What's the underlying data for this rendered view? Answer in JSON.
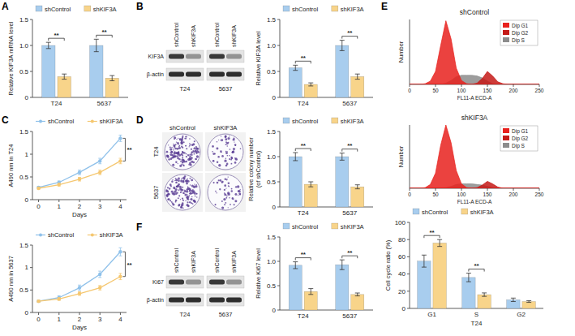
{
  "panels": [
    "A",
    "B",
    "C",
    "D",
    "E",
    "F"
  ],
  "blots": [
    {
      "lanes": [
        "shControl",
        "shKIF3A"
      ],
      "groups": [
        "T24",
        "5637"
      ],
      "rows": [
        "KIF3A",
        "β-actin"
      ]
    },
    {
      "lanes": [
        "shControl",
        "shKIF3A"
      ],
      "groups": [
        "T24",
        "5637"
      ],
      "rows": [
        "Ki67",
        "β-actin"
      ]
    }
  ],
  "colony": {
    "columns": [
      "shControl",
      "shKIF3A"
    ],
    "rows": [
      "T24",
      "5637"
    ]
  },
  "chart_data": [
    {
      "type": "bar",
      "ylabel": "Relative KIF3A mRNA level",
      "categories": [
        "T24",
        "5637"
      ],
      "series": [
        {
          "name": "shControl",
          "color": "#a8cdee",
          "values": [
            1.0,
            1.0
          ],
          "errors": [
            0.06,
            0.12
          ]
        },
        {
          "name": "shKIF3A",
          "color": "#f8d48a",
          "values": [
            0.4,
            0.37
          ],
          "errors": [
            0.05,
            0.05
          ]
        }
      ],
      "ylim": [
        0,
        1.5
      ],
      "yticks": [
        0,
        0.5,
        {
          "value": 1,
          "label": "1.0"
        },
        1.5
      ],
      "legend": "top",
      "annotations": [
        "**",
        "**"
      ]
    },
    {
      "type": "bar",
      "ylabel": "Relative KIF3A level",
      "categories": [
        "T24",
        "5637"
      ],
      "series": [
        {
          "name": "shControl",
          "color": "#a8cdee",
          "values": [
            0.57,
            1.0
          ],
          "errors": [
            0.05,
            0.1
          ]
        },
        {
          "name": "shKIF3A",
          "color": "#f8d48a",
          "values": [
            0.25,
            0.4
          ],
          "errors": [
            0.03,
            0.05
          ]
        }
      ],
      "ylim": [
        0,
        1.5
      ],
      "yticks": [
        0,
        0.5,
        {
          "value": 1,
          "label": "1.0"
        },
        1.5
      ],
      "legend": "top",
      "annotations": [
        "**",
        "**"
      ]
    },
    {
      "type": "line",
      "ylabel": "A490 nm in T24",
      "xlabel": "Days",
      "x": [
        0,
        1,
        2,
        3,
        4
      ],
      "xlim": [
        -0.3,
        4.3
      ],
      "xticks": [
        0,
        1,
        2,
        3,
        4
      ],
      "ylim": [
        0,
        1.5
      ],
      "yticks": [
        0,
        0.5,
        1,
        1.5
      ],
      "marker": "circle",
      "legend": "top",
      "annotations": [
        "**"
      ],
      "series": [
        {
          "name": "shControl",
          "color": "#8fc1ea",
          "values": [
            0.27,
            0.38,
            0.6,
            0.85,
            1.35
          ],
          "errors": [
            0.02,
            0.03,
            0.05,
            0.06,
            0.07
          ]
        },
        {
          "name": "shKIF3A",
          "color": "#f5c770",
          "values": [
            0.25,
            0.33,
            0.45,
            0.6,
            0.85
          ],
          "errors": [
            0.02,
            0.03,
            0.04,
            0.05,
            0.06
          ]
        }
      ]
    },
    {
      "type": "line",
      "ylabel": "A490 nm in 5637",
      "xlabel": "Days",
      "x": [
        0,
        1,
        2,
        3,
        4
      ],
      "xlim": [
        -0.3,
        4.3
      ],
      "xticks": [
        0,
        1,
        2,
        3,
        4
      ],
      "ylim": [
        0,
        1.5
      ],
      "yticks": [
        0,
        0.5,
        1,
        1.5
      ],
      "marker": "circle",
      "legend": "top",
      "annotations": [
        "**"
      ],
      "series": [
        {
          "name": "shControl",
          "color": "#8fc1ea",
          "values": [
            0.25,
            0.33,
            0.55,
            0.85,
            1.35
          ],
          "errors": [
            0.02,
            0.04,
            0.06,
            0.07,
            0.09
          ]
        },
        {
          "name": "shKIF3A",
          "color": "#f5c770",
          "values": [
            0.25,
            0.3,
            0.42,
            0.55,
            0.8
          ],
          "errors": [
            0.02,
            0.03,
            0.04,
            0.05,
            0.07
          ]
        }
      ]
    },
    {
      "type": "bar",
      "ylabel": [
        "Relative colony number",
        "(of shControl)"
      ],
      "categories": [
        "T24",
        "5637"
      ],
      "series": [
        {
          "name": "shControl",
          "color": "#a8cdee",
          "values": [
            1.0,
            1.0
          ],
          "errors": [
            0.08,
            0.07
          ]
        },
        {
          "name": "shKIF3A",
          "color": "#f8d48a",
          "values": [
            0.45,
            0.4
          ],
          "errors": [
            0.05,
            0.04
          ]
        }
      ],
      "ylim": [
        0,
        1.5
      ],
      "yticks": [
        0,
        0.5,
        {
          "value": 1,
          "label": "1.0"
        },
        1.5
      ],
      "legend": "top",
      "annotations": [
        "**",
        "**"
      ]
    },
    {
      "type": "area",
      "title": "shControl",
      "xlabel": "FL11-A ECD-A",
      "ylabel": "Number",
      "x": [
        0,
        10,
        20,
        30,
        40,
        50,
        60,
        70,
        80,
        90,
        100,
        110,
        120,
        130,
        140,
        150,
        160,
        170,
        180,
        190,
        200,
        210,
        220,
        230,
        240,
        250
      ],
      "xlim": [
        0,
        250
      ],
      "xticks": [
        0,
        50,
        100,
        150,
        200,
        250
      ],
      "ylim": [
        0,
        100
      ],
      "tick_labels": "x",
      "legend": "top-right",
      "series": [
        {
          "name": "Dip G1",
          "color": "#e8211d",
          "values": [
            0,
            0,
            0,
            1,
            5,
            20,
            60,
            98,
            70,
            25,
            6,
            1,
            0,
            0,
            0,
            0,
            0,
            0,
            0,
            0,
            0,
            0,
            0,
            0,
            0,
            0
          ]
        },
        {
          "name": "Dip G2",
          "color": "#c41a17",
          "values": [
            0,
            0,
            0,
            0,
            0,
            0,
            0,
            0,
            0,
            0,
            0,
            0,
            0,
            2,
            9,
            20,
            13,
            4,
            1,
            0,
            0,
            0,
            0,
            0,
            0,
            0
          ]
        },
        {
          "name": "Dip S",
          "color": "#8c8c8c",
          "values": [
            0,
            0,
            0,
            0,
            0,
            0,
            0,
            2,
            6,
            12,
            14,
            14,
            14,
            13,
            10,
            5,
            1,
            0,
            0,
            0,
            0,
            0,
            0,
            0,
            0,
            0
          ]
        }
      ]
    },
    {
      "type": "area",
      "title": "shKIF3A",
      "xlabel": "FL11-A ECD-A",
      "ylabel": "Number",
      "x": [
        0,
        10,
        20,
        30,
        40,
        50,
        60,
        70,
        80,
        90,
        100,
        110,
        120,
        130,
        140,
        150,
        160,
        170,
        180,
        190,
        200,
        210,
        220,
        230,
        240,
        250
      ],
      "xlim": [
        0,
        250
      ],
      "xticks": [
        0,
        50,
        100,
        150,
        200,
        250
      ],
      "ylim": [
        0,
        100
      ],
      "tick_labels": "x",
      "legend": "top-right",
      "series": [
        {
          "name": "Dip G1",
          "color": "#e8211d",
          "values": [
            0,
            0,
            0,
            1,
            6,
            24,
            68,
            100,
            72,
            28,
            7,
            1,
            0,
            0,
            0,
            0,
            0,
            0,
            0,
            0,
            0,
            0,
            0,
            0,
            0,
            0
          ]
        },
        {
          "name": "Dip G2",
          "color": "#c41a17",
          "values": [
            0,
            0,
            0,
            0,
            0,
            0,
            0,
            0,
            0,
            0,
            0,
            0,
            0,
            1,
            5,
            11,
            7,
            2,
            0,
            0,
            0,
            0,
            0,
            0,
            0,
            0
          ]
        },
        {
          "name": "Dip S",
          "color": "#8c8c8c",
          "values": [
            0,
            0,
            0,
            0,
            0,
            0,
            0,
            1,
            3,
            6,
            7,
            7,
            7,
            6,
            5,
            3,
            1,
            0,
            0,
            0,
            0,
            0,
            0,
            0,
            0,
            0
          ]
        }
      ]
    },
    {
      "type": "bar",
      "xlabel": "T24",
      "ylabel": "Cell cycle ratio (%)",
      "categories": [
        "G1",
        "S",
        "G2"
      ],
      "series": [
        {
          "name": "shControl",
          "color": "#a8cdee",
          "values": [
            55,
            36,
            10
          ],
          "errors": [
            7,
            5,
            2
          ]
        },
        {
          "name": "shKIF3A",
          "color": "#f8d48a",
          "values": [
            76,
            16,
            8
          ],
          "errors": [
            4,
            2,
            1
          ]
        }
      ],
      "ylim": [
        0,
        100
      ],
      "yticks": [
        0,
        20,
        40,
        60,
        80,
        100
      ],
      "legend": "top",
      "annotations": [
        "**",
        "**",
        null
      ]
    },
    {
      "type": "bar",
      "ylabel": "Relative Ki67 level",
      "categories": [
        "T24",
        "5637"
      ],
      "series": [
        {
          "name": "shControl",
          "color": "#a8cdee",
          "values": [
            0.92,
            0.93
          ],
          "errors": [
            0.07,
            0.1
          ]
        },
        {
          "name": "shKIF3A",
          "color": "#f8d48a",
          "values": [
            0.38,
            0.32
          ],
          "errors": [
            0.06,
            0.03
          ]
        }
      ],
      "ylim": [
        0,
        1.5
      ],
      "yticks": [
        0,
        0.5,
        {
          "value": 1,
          "label": "1.0"
        },
        1.5
      ],
      "legend": "top",
      "annotations": [
        "**",
        "**"
      ]
    }
  ]
}
